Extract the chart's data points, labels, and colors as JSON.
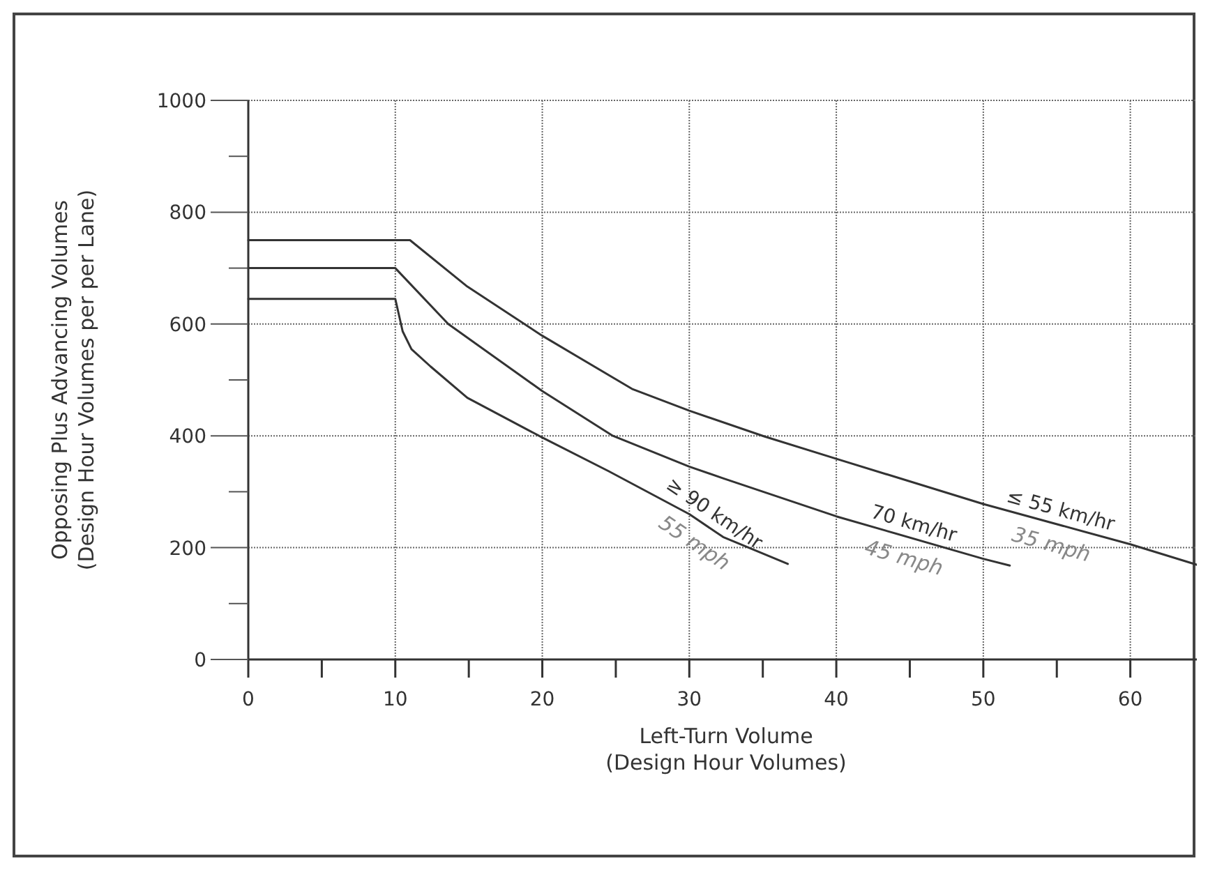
{
  "chart_data": {
    "type": "line",
    "xlabel": "Left-Turn Volume\n(Design Hour Volumes)",
    "ylabel": "Opposing Plus Advancing Volumes\n(Design Hour Volumes per per Lane)",
    "xlim": [
      0,
      65
    ],
    "ylim": [
      0,
      1000
    ],
    "xticks": [
      0,
      {
        "value": 5,
        "label": null
      },
      10,
      {
        "value": 15,
        "label": null
      },
      20,
      {
        "value": 25,
        "label": null
      },
      30,
      {
        "value": 35,
        "label": null
      },
      40,
      {
        "value": 45,
        "label": null
      },
      50,
      {
        "value": 55,
        "label": null
      },
      60
    ],
    "yticks": [
      0,
      {
        "value": 100,
        "label": null
      },
      200,
      {
        "value": 300,
        "label": null
      },
      400,
      {
        "value": 500,
        "label": null
      },
      600,
      {
        "value": 700,
        "label": null
      },
      800,
      {
        "value": 900,
        "label": null
      },
      1000
    ],
    "grid": true,
    "legend": false,
    "marker": "none",
    "line_style": "solid",
    "series": [
      {
        "name": "≥ 90 km/hr",
        "color": "#333333",
        "x": [
          0,
          10,
          10.5,
          11.1,
          12.4,
          14.9,
          20,
          24.5,
          30,
          32.3,
          36.7
        ],
        "values": [
          645,
          645,
          587,
          555,
          524,
          468,
          397,
          337,
          260,
          219,
          171
        ]
      },
      {
        "name": "70 km/hr",
        "color": "#333333",
        "x": [
          0,
          10,
          13.6,
          20,
          24.8,
          30,
          32.3,
          40,
          50,
          51.8
        ],
        "values": [
          700,
          700,
          600,
          480,
          400,
          345,
          324,
          256,
          180,
          168
        ]
      },
      {
        "name": "≤ 55 km/hr",
        "color": "#333333",
        "x": [
          0,
          11,
          14.9,
          20,
          26.1,
          30,
          35.1,
          40,
          50,
          60,
          64.7
        ],
        "values": [
          750,
          750,
          667,
          579,
          484,
          445,
          399,
          359,
          278,
          206,
          168
        ]
      }
    ],
    "annotations": [
      "55 mph",
      "45 mph",
      "35 mph"
    ]
  }
}
